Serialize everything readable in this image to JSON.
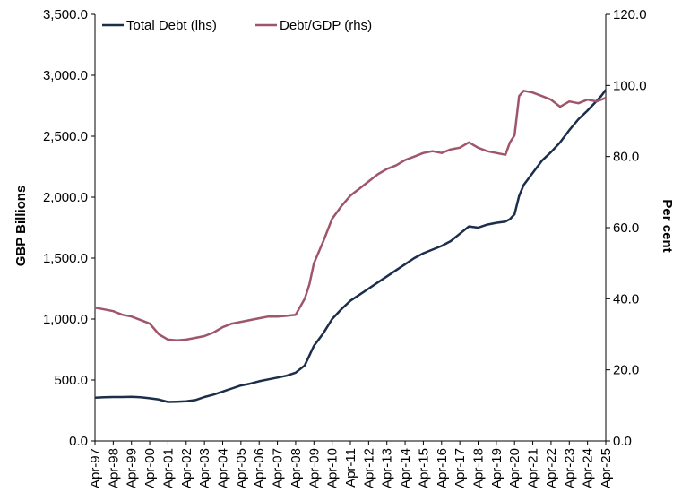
{
  "chart_data": {
    "type": "line",
    "title": "",
    "xlabel": "",
    "ylabel": "GBP Billions",
    "ylabel_right": "Per cent",
    "ylim": [
      0,
      3500
    ],
    "ylim_right": [
      0,
      120
    ],
    "y_ticks": [
      "0.0",
      "500.0",
      "1,000.0",
      "1,500.0",
      "2,000.0",
      "2,500.0",
      "3,000.0",
      "3,500.0"
    ],
    "y_ticks_right": [
      "0.0",
      "20.0",
      "40.0",
      "60.0",
      "80.0",
      "100.0",
      "120.0"
    ],
    "x_ticks": [
      "Apr-97",
      "Apr-98",
      "Apr-99",
      "Apr-00",
      "Apr-01",
      "Apr-02",
      "Apr-03",
      "Apr-04",
      "Apr-05",
      "Apr-06",
      "Apr-07",
      "Apr-08",
      "Apr-09",
      "Apr-10",
      "Apr-11",
      "Apr-12",
      "Apr-13",
      "Apr-14",
      "Apr-15",
      "Apr-16",
      "Apr-17",
      "Apr-18",
      "Apr-19",
      "Apr-20",
      "Apr-21",
      "Apr-22",
      "Apr-23",
      "Apr-24",
      "Apr-25"
    ],
    "grid": false,
    "legend": "top-left",
    "series": [
      {
        "name": "Total Debt (lhs)",
        "axis": "left",
        "color": "#1c2e4a",
        "points": [
          [
            "Apr-97",
            355
          ],
          [
            "Oct-97",
            358
          ],
          [
            "Apr-98",
            360
          ],
          [
            "Oct-98",
            360
          ],
          [
            "Apr-99",
            362
          ],
          [
            "Oct-99",
            358
          ],
          [
            "Apr-00",
            350
          ],
          [
            "Oct-00",
            340
          ],
          [
            "Apr-01",
            320
          ],
          [
            "Oct-01",
            322
          ],
          [
            "Apr-02",
            325
          ],
          [
            "Oct-02",
            335
          ],
          [
            "Apr-03",
            360
          ],
          [
            "Oct-03",
            380
          ],
          [
            "Apr-04",
            405
          ],
          [
            "Oct-04",
            430
          ],
          [
            "Apr-05",
            455
          ],
          [
            "Oct-05",
            470
          ],
          [
            "Apr-06",
            490
          ],
          [
            "Oct-06",
            505
          ],
          [
            "Apr-07",
            520
          ],
          [
            "Oct-07",
            535
          ],
          [
            "Apr-08",
            560
          ],
          [
            "Oct-08",
            620
          ],
          [
            "Jan-09",
            700
          ],
          [
            "Apr-09",
            780
          ],
          [
            "Oct-09",
            880
          ],
          [
            "Apr-10",
            1000
          ],
          [
            "Oct-10",
            1080
          ],
          [
            "Apr-11",
            1150
          ],
          [
            "Oct-11",
            1200
          ],
          [
            "Apr-12",
            1250
          ],
          [
            "Oct-12",
            1300
          ],
          [
            "Apr-13",
            1350
          ],
          [
            "Oct-13",
            1400
          ],
          [
            "Apr-14",
            1450
          ],
          [
            "Oct-14",
            1500
          ],
          [
            "Apr-15",
            1540
          ],
          [
            "Oct-15",
            1570
          ],
          [
            "Apr-16",
            1600
          ],
          [
            "Oct-16",
            1640
          ],
          [
            "Apr-17",
            1700
          ],
          [
            "Oct-17",
            1760
          ],
          [
            "Apr-18",
            1750
          ],
          [
            "Oct-18",
            1775
          ],
          [
            "Apr-19",
            1790
          ],
          [
            "Oct-19",
            1800
          ],
          [
            "Jan-20",
            1820
          ],
          [
            "Apr-20",
            1860
          ],
          [
            "Jul-20",
            2010
          ],
          [
            "Oct-20",
            2100
          ],
          [
            "Apr-21",
            2200
          ],
          [
            "Oct-21",
            2300
          ],
          [
            "Apr-22",
            2370
          ],
          [
            "Oct-22",
            2450
          ],
          [
            "Apr-23",
            2550
          ],
          [
            "Oct-23",
            2640
          ],
          [
            "Apr-24",
            2710
          ],
          [
            "Oct-24",
            2790
          ],
          [
            "Jan-25",
            2830
          ],
          [
            "Apr-25",
            2880
          ]
        ]
      },
      {
        "name": "Debt/GDP (rhs)",
        "axis": "right",
        "color": "#a0566a",
        "points": [
          [
            "Apr-97",
            37.5
          ],
          [
            "Oct-97",
            37.0
          ],
          [
            "Apr-98",
            36.5
          ],
          [
            "Oct-98",
            35.5
          ],
          [
            "Apr-99",
            35.0
          ],
          [
            "Oct-99",
            34.0
          ],
          [
            "Apr-00",
            33.0
          ],
          [
            "Oct-00",
            30.0
          ],
          [
            "Apr-01",
            28.5
          ],
          [
            "Oct-01",
            28.3
          ],
          [
            "Apr-02",
            28.5
          ],
          [
            "Oct-02",
            29.0
          ],
          [
            "Apr-03",
            29.5
          ],
          [
            "Oct-03",
            30.5
          ],
          [
            "Apr-04",
            32.0
          ],
          [
            "Oct-04",
            33.0
          ],
          [
            "Apr-05",
            33.5
          ],
          [
            "Oct-05",
            34.0
          ],
          [
            "Apr-06",
            34.5
          ],
          [
            "Oct-06",
            35.0
          ],
          [
            "Apr-07",
            35.0
          ],
          [
            "Oct-07",
            35.2
          ],
          [
            "Apr-08",
            35.5
          ],
          [
            "Oct-08",
            40.0
          ],
          [
            "Jan-09",
            44.0
          ],
          [
            "Apr-09",
            50.0
          ],
          [
            "Oct-09",
            56.0
          ],
          [
            "Apr-10",
            62.5
          ],
          [
            "Oct-10",
            66.0
          ],
          [
            "Apr-11",
            69.0
          ],
          [
            "Oct-11",
            71.0
          ],
          [
            "Apr-12",
            73.0
          ],
          [
            "Oct-12",
            75.0
          ],
          [
            "Apr-13",
            76.5
          ],
          [
            "Oct-13",
            77.5
          ],
          [
            "Apr-14",
            79.0
          ],
          [
            "Oct-14",
            80.0
          ],
          [
            "Apr-15",
            81.0
          ],
          [
            "Oct-15",
            81.5
          ],
          [
            "Apr-16",
            81.0
          ],
          [
            "Oct-16",
            82.0
          ],
          [
            "Apr-17",
            82.5
          ],
          [
            "Oct-17",
            84.0
          ],
          [
            "Apr-18",
            82.5
          ],
          [
            "Oct-18",
            81.5
          ],
          [
            "Apr-19",
            81.0
          ],
          [
            "Oct-19",
            80.5
          ],
          [
            "Jan-20",
            84.0
          ],
          [
            "Apr-20",
            86.0
          ],
          [
            "Jul-20",
            97.0
          ],
          [
            "Oct-20",
            98.5
          ],
          [
            "Apr-21",
            98.0
          ],
          [
            "Oct-21",
            97.0
          ],
          [
            "Apr-22",
            96.0
          ],
          [
            "Oct-22",
            94.0
          ],
          [
            "Apr-23",
            95.5
          ],
          [
            "Oct-23",
            95.0
          ],
          [
            "Apr-24",
            96.0
          ],
          [
            "Oct-24",
            95.5
          ],
          [
            "Jan-25",
            96.0
          ],
          [
            "Apr-25",
            96.5
          ]
        ]
      }
    ]
  }
}
